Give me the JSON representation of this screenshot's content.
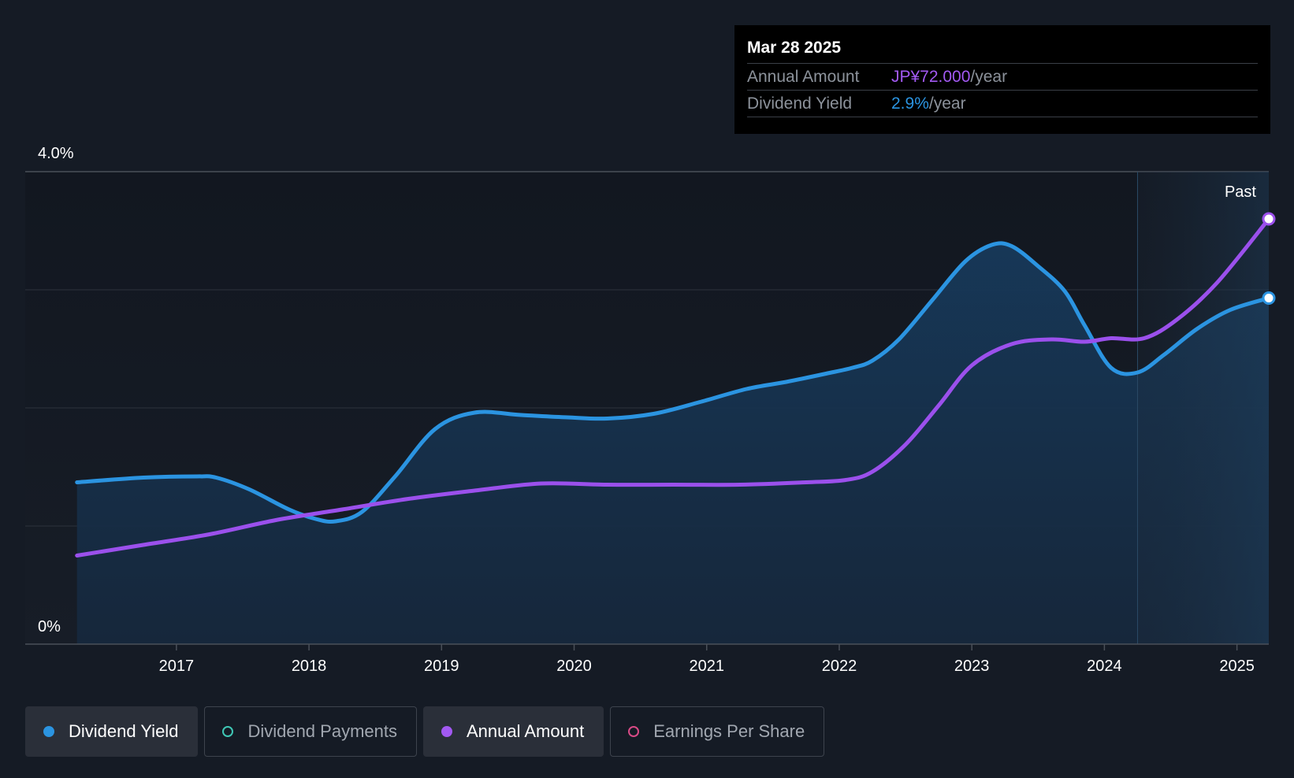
{
  "chart_data": {
    "type": "line",
    "title": "",
    "xlabel": "",
    "ylabel": "",
    "y_axis_labels": {
      "top": "4.0%",
      "bottom": "0%"
    },
    "ylim": [
      0,
      4.0
    ],
    "xlim": [
      2016.24,
      2025.24
    ],
    "x_ticks": [
      "2017",
      "2018",
      "2019",
      "2020",
      "2021",
      "2022",
      "2023",
      "2024",
      "2025"
    ],
    "past_label": "Past",
    "past_start": 2024.25,
    "series": [
      {
        "name": "Dividend Yield",
        "color": "#2b94e1",
        "fill": true,
        "points": [
          [
            2016.25,
            1.37
          ],
          [
            2016.75,
            1.41
          ],
          [
            2017.15,
            1.42
          ],
          [
            2017.3,
            1.41
          ],
          [
            2017.55,
            1.31
          ],
          [
            2017.85,
            1.14
          ],
          [
            2018.05,
            1.06
          ],
          [
            2018.2,
            1.04
          ],
          [
            2018.4,
            1.12
          ],
          [
            2018.65,
            1.42
          ],
          [
            2018.95,
            1.82
          ],
          [
            2019.25,
            1.96
          ],
          [
            2019.6,
            1.94
          ],
          [
            2019.95,
            1.92
          ],
          [
            2020.25,
            1.91
          ],
          [
            2020.6,
            1.95
          ],
          [
            2020.95,
            2.05
          ],
          [
            2021.3,
            2.16
          ],
          [
            2021.6,
            2.22
          ],
          [
            2021.9,
            2.29
          ],
          [
            2022.1,
            2.34
          ],
          [
            2022.25,
            2.4
          ],
          [
            2022.45,
            2.58
          ],
          [
            2022.7,
            2.91
          ],
          [
            2022.95,
            3.24
          ],
          [
            2023.15,
            3.38
          ],
          [
            2023.3,
            3.37
          ],
          [
            2023.5,
            3.2
          ],
          [
            2023.7,
            2.99
          ],
          [
            2023.85,
            2.7
          ],
          [
            2024.05,
            2.34
          ],
          [
            2024.25,
            2.3
          ],
          [
            2024.45,
            2.45
          ],
          [
            2024.7,
            2.67
          ],
          [
            2024.95,
            2.83
          ],
          [
            2025.24,
            2.93
          ]
        ]
      },
      {
        "name": "Annual Amount",
        "color": "#9b50ec",
        "fill": false,
        "points": [
          [
            2016.25,
            0.75
          ],
          [
            2016.75,
            0.84
          ],
          [
            2017.25,
            0.93
          ],
          [
            2017.75,
            1.05
          ],
          [
            2018.25,
            1.14
          ],
          [
            2018.75,
            1.23
          ],
          [
            2019.25,
            1.3
          ],
          [
            2019.75,
            1.36
          ],
          [
            2020.25,
            1.35
          ],
          [
            2020.75,
            1.35
          ],
          [
            2021.25,
            1.35
          ],
          [
            2021.75,
            1.37
          ],
          [
            2022.05,
            1.39
          ],
          [
            2022.25,
            1.46
          ],
          [
            2022.5,
            1.69
          ],
          [
            2022.75,
            2.02
          ],
          [
            2023.0,
            2.36
          ],
          [
            2023.3,
            2.54
          ],
          [
            2023.6,
            2.58
          ],
          [
            2023.85,
            2.56
          ],
          [
            2024.05,
            2.59
          ],
          [
            2024.3,
            2.59
          ],
          [
            2024.55,
            2.75
          ],
          [
            2024.85,
            3.06
          ],
          [
            2025.24,
            3.6
          ]
        ]
      }
    ],
    "y_scale_annual_amount": {
      "zero": 0,
      "top": 4.0
    }
  },
  "tooltip": {
    "date": "Mar 28 2025",
    "rows": [
      {
        "label": "Annual Amount",
        "value": "JP¥72.000",
        "unit": "/year",
        "color": "#a259f2"
      },
      {
        "label": "Dividend Yield",
        "value": "2.9%",
        "unit": "/year",
        "color": "#2b94e1"
      }
    ]
  },
  "legend": [
    {
      "label": "Dividend Yield",
      "color": "#2b94e1",
      "filled": true,
      "active": true
    },
    {
      "label": "Dividend Payments",
      "color": "#3fc7b5",
      "filled": false,
      "active": false
    },
    {
      "label": "Annual Amount",
      "color": "#a259f2",
      "filled": true,
      "active": true
    },
    {
      "label": "Earnings Per Share",
      "color": "#d84a86",
      "filled": false,
      "active": false
    }
  ]
}
